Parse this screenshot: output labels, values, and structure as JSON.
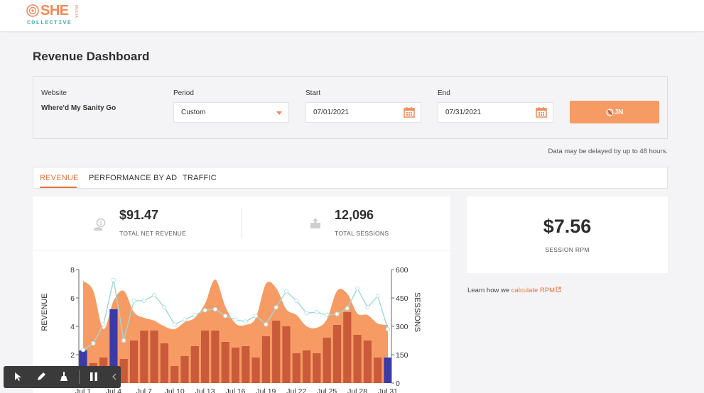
{
  "brand": {
    "name": "SHE",
    "sub": "MEDIA",
    "tag": "COLLECTIVE"
  },
  "page": {
    "title": "Revenue Dashboard"
  },
  "filters": {
    "website_label": "Website",
    "website_value": "Where'd My Sanity Go",
    "period_label": "Period",
    "period_value": "Custom",
    "start_label": "Start",
    "start_value": "07/01/2021",
    "end_label": "End",
    "end_value": "07/31/2021",
    "join_label": "JN"
  },
  "delay_note": "Data may be delayed by up to 48 hours.",
  "tabs": [
    {
      "label": "REVENUE",
      "active": true
    },
    {
      "label": "PERFORMANCE BY AD",
      "active": false
    },
    {
      "label": "TRAFFIC",
      "active": false
    }
  ],
  "stats": {
    "revenue_value": "$91.47",
    "revenue_label": "TOTAL NET REVENUE",
    "sessions_value": "12,096",
    "sessions_label": "TOTAL SESSIONS"
  },
  "rpm": {
    "value": "$7.56",
    "label": "SESSION RPM"
  },
  "learn": {
    "prefix": "Learn how we ",
    "link": "calculate RPM"
  },
  "colors": {
    "accent": "#e8743b",
    "area": "#f79b64",
    "bar": "#c95a3a",
    "bar_highlight": "#3a3aa8",
    "sessions_line": "#9fd8d8"
  },
  "chart_data": {
    "type": "bar",
    "xlabel": "",
    "ylabel": "REVENUE",
    "y2label": "SESSIONS",
    "ylim": [
      0,
      8
    ],
    "y2lim": [
      0,
      600
    ],
    "yticks": [
      "0",
      "2",
      "4",
      "6",
      "8"
    ],
    "y2ticks": [
      "0",
      "150",
      "300",
      "450",
      "600"
    ],
    "xtick_labels": [
      "Jul 1",
      "Jul 4",
      "Jul 7",
      "Jul 10",
      "Jul 13",
      "Jul 16",
      "Jul 19",
      "Jul 22",
      "Jul 25",
      "Jul 28",
      "Jul 31"
    ],
    "categories": [
      "Jul 1",
      "Jul 2",
      "Jul 3",
      "Jul 4",
      "Jul 5",
      "Jul 6",
      "Jul 7",
      "Jul 8",
      "Jul 9",
      "Jul 10",
      "Jul 11",
      "Jul 12",
      "Jul 13",
      "Jul 14",
      "Jul 15",
      "Jul 16",
      "Jul 17",
      "Jul 18",
      "Jul 19",
      "Jul 20",
      "Jul 21",
      "Jul 22",
      "Jul 23",
      "Jul 24",
      "Jul 25",
      "Jul 26",
      "Jul 27",
      "Jul 28",
      "Jul 29",
      "Jul 30",
      "Jul 31"
    ],
    "series": [
      {
        "kind": "bar",
        "values": [
          2.3,
          1.4,
          1.8,
          5.2,
          1.7,
          3.0,
          3.7,
          3.7,
          2.8,
          1.2,
          1.9,
          2.6,
          3.7,
          3.7,
          2.9,
          2.5,
          2.6,
          1.8,
          3.3,
          4.4,
          4.0,
          2.1,
          2.3,
          2.1,
          3.2,
          4.1,
          5.0,
          3.4,
          3.0,
          1.8,
          1.8
        ]
      },
      {
        "kind": "area",
        "values": [
          7.2,
          6.5,
          3.8,
          5.8,
          6.5,
          5.0,
          4.6,
          4.4,
          4.0,
          3.8,
          4.3,
          4.6,
          5.6,
          7.3,
          5.4,
          4.2,
          4.1,
          4.6,
          7.0,
          6.7,
          5.2,
          4.8,
          4.0,
          3.9,
          4.5,
          6.5,
          6.3,
          4.9,
          4.8,
          4.2,
          4.1
        ]
      }
    ],
    "sessions_line": [
      175,
      210,
      310,
      545,
      225,
      435,
      435,
      465,
      400,
      310,
      335,
      360,
      385,
      390,
      355,
      335,
      325,
      355,
      310,
      400,
      485,
      435,
      370,
      375,
      360,
      365,
      395,
      500,
      400,
      460,
      285
    ]
  }
}
